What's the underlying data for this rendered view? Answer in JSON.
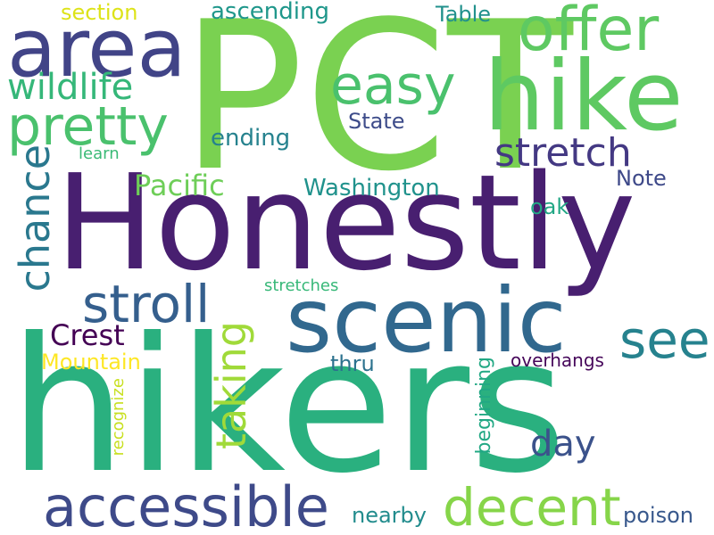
{
  "words": [
    {
      "text": "PCT",
      "color": "#7ad151"
    },
    {
      "text": "Honestly",
      "color": "#481f70"
    },
    {
      "text": "hikers",
      "color": "#2ab07f"
    },
    {
      "text": "scenic",
      "color": "#31688e"
    },
    {
      "text": "hike",
      "color": "#5ec962"
    },
    {
      "text": "area",
      "color": "#414487"
    },
    {
      "text": "offer",
      "color": "#5ec962"
    },
    {
      "text": "easy",
      "color": "#4ac16d"
    },
    {
      "text": "pretty",
      "color": "#4ac16d"
    },
    {
      "text": "wildlife",
      "color": "#35b779"
    },
    {
      "text": "accessible",
      "color": "#3e4a89"
    },
    {
      "text": "decent",
      "color": "#86d549"
    },
    {
      "text": "stroll",
      "color": "#355f8d"
    },
    {
      "text": "chance",
      "color": "#2a788e"
    },
    {
      "text": "see",
      "color": "#26828e"
    },
    {
      "text": "stretch",
      "color": "#443983"
    },
    {
      "text": "taking",
      "color": "#a0da39"
    },
    {
      "text": "day",
      "color": "#3b528b"
    },
    {
      "text": "Pacific",
      "color": "#6ece58"
    },
    {
      "text": "Crest",
      "color": "#440154"
    },
    {
      "text": "section",
      "color": "#dde318"
    },
    {
      "text": "ascending",
      "color": "#1f978b"
    },
    {
      "text": "Table",
      "color": "#21918c"
    },
    {
      "text": "State",
      "color": "#3e4c8a"
    },
    {
      "text": "ending",
      "color": "#26828e"
    },
    {
      "text": "Washington",
      "color": "#20928c"
    },
    {
      "text": "Note",
      "color": "#3e4989"
    },
    {
      "text": "oak",
      "color": "#22a785"
    },
    {
      "text": "Mountain",
      "color": "#fde725"
    },
    {
      "text": "thru",
      "color": "#2c728e"
    },
    {
      "text": "stretches",
      "color": "#37b878"
    },
    {
      "text": "learn",
      "color": "#3aba76"
    },
    {
      "text": "recognize",
      "color": "#c8e020"
    },
    {
      "text": "beginning",
      "color": "#22a884"
    },
    {
      "text": "overhangs",
      "color": "#46075a"
    },
    {
      "text": "nearby",
      "color": "#228c8d"
    },
    {
      "text": "poison",
      "color": "#38588c"
    }
  ]
}
